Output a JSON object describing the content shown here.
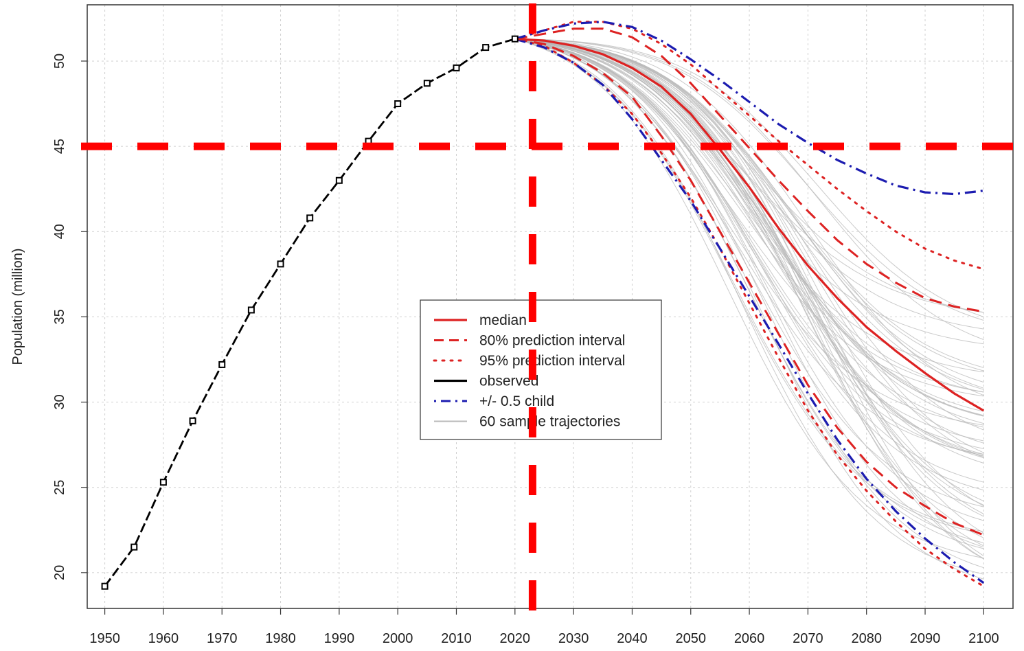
{
  "chart_data": {
    "type": "line",
    "title": "",
    "xlabel": "",
    "ylabel": "Population (million)",
    "xlim": [
      1947,
      2105
    ],
    "ylim": [
      17.9,
      53.3
    ],
    "x_ticks": [
      1950,
      1960,
      1970,
      1980,
      1990,
      2000,
      2010,
      2020,
      2030,
      2040,
      2050,
      2060,
      2070,
      2080,
      2090,
      2100
    ],
    "y_ticks": [
      20,
      25,
      30,
      35,
      40,
      45,
      50
    ],
    "grid": true,
    "legend_position": "center",
    "observed": {
      "name": "observed",
      "x": [
        1950,
        1955,
        1960,
        1965,
        1970,
        1975,
        1980,
        1985,
        1990,
        1995,
        2000,
        2005,
        2010,
        2015,
        2020
      ],
      "y": [
        19.2,
        21.5,
        25.3,
        28.9,
        32.2,
        35.4,
        38.1,
        40.8,
        43.0,
        45.3,
        47.5,
        48.7,
        49.6,
        50.8,
        51.3
      ]
    },
    "series": [
      {
        "name": "median",
        "style": "solid",
        "color": "#dd2222",
        "x": [
          2020,
          2025,
          2030,
          2035,
          2040,
          2045,
          2050,
          2055,
          2060,
          2065,
          2070,
          2075,
          2080,
          2085,
          2090,
          2095,
          2100
        ],
        "y": [
          51.3,
          51.2,
          50.9,
          50.4,
          49.6,
          48.5,
          46.9,
          44.8,
          42.6,
          40.2,
          38.0,
          36.1,
          34.4,
          33.0,
          31.7,
          30.5,
          29.5
        ]
      },
      {
        "name": "80% prediction interval",
        "style": "dashed",
        "color": "#dd2222",
        "upper": {
          "x": [
            2020,
            2025,
            2030,
            2035,
            2040,
            2045,
            2050,
            2055,
            2060,
            2065,
            2070,
            2075,
            2080,
            2085,
            2090,
            2095,
            2100
          ],
          "y": [
            51.3,
            51.6,
            51.9,
            51.9,
            51.4,
            50.3,
            48.7,
            46.8,
            44.9,
            43.0,
            41.2,
            39.5,
            38.1,
            37.0,
            36.1,
            35.6,
            35.3
          ]
        },
        "lower": {
          "x": [
            2020,
            2025,
            2030,
            2035,
            2040,
            2045,
            2050,
            2055,
            2060,
            2065,
            2070,
            2075,
            2080,
            2085,
            2090,
            2095,
            2100
          ],
          "y": [
            51.3,
            51.0,
            50.3,
            49.3,
            47.9,
            45.6,
            43.0,
            40.0,
            37.0,
            34.0,
            31.0,
            28.5,
            26.5,
            25.0,
            23.9,
            22.9,
            22.2
          ]
        }
      },
      {
        "name": "95% prediction interval",
        "style": "dotted",
        "color": "#dd2222",
        "upper": {
          "x": [
            2020,
            2025,
            2030,
            2035,
            2040,
            2045,
            2050,
            2055,
            2060,
            2065,
            2070,
            2075,
            2080,
            2085,
            2090,
            2095,
            2100
          ],
          "y": [
            51.3,
            51.8,
            52.3,
            52.3,
            51.9,
            51.0,
            49.8,
            48.3,
            46.8,
            45.3,
            43.9,
            42.5,
            41.2,
            40.0,
            39.0,
            38.3,
            37.8
          ]
        },
        "lower": {
          "x": [
            2020,
            2025,
            2030,
            2035,
            2040,
            2045,
            2050,
            2055,
            2060,
            2065,
            2070,
            2075,
            2080,
            2085,
            2090,
            2095,
            2100
          ],
          "y": [
            51.3,
            50.9,
            49.9,
            48.6,
            46.9,
            44.6,
            42.0,
            39.0,
            35.8,
            32.6,
            29.5,
            26.9,
            24.8,
            23.0,
            21.4,
            20.2,
            19.2
          ]
        }
      },
      {
        "name": "+/- 0.5 child",
        "style": "dashdot",
        "color": "#1c1cb0",
        "upper": {
          "x": [
            2020,
            2025,
            2030,
            2035,
            2040,
            2045,
            2050,
            2055,
            2060,
            2065,
            2070,
            2075,
            2080,
            2085,
            2090,
            2095,
            2100
          ],
          "y": [
            51.3,
            51.8,
            52.2,
            52.3,
            52.0,
            51.2,
            50.1,
            48.9,
            47.6,
            46.3,
            45.2,
            44.2,
            43.4,
            42.7,
            42.3,
            42.2,
            42.4
          ]
        },
        "lower": {
          "x": [
            2020,
            2025,
            2030,
            2035,
            2040,
            2045,
            2050,
            2055,
            2060,
            2065,
            2070,
            2075,
            2080,
            2085,
            2090,
            2095,
            2100
          ],
          "y": [
            51.3,
            50.8,
            49.9,
            48.6,
            46.6,
            44.2,
            41.8,
            39.0,
            36.2,
            33.4,
            30.5,
            27.8,
            25.5,
            23.6,
            22.0,
            20.6,
            19.4
          ]
        }
      }
    ],
    "sample_trajectories": {
      "name": "60 sample trajectories",
      "count": 60,
      "color": "#b8b8b8",
      "start": [
        2020,
        51.3
      ],
      "end_range_2100": [
        19.5,
        36.0
      ]
    },
    "legend": [
      {
        "label": "median",
        "style": "solid",
        "color": "#dd2222"
      },
      {
        "label": "80% prediction interval",
        "style": "dashed",
        "color": "#dd2222"
      },
      {
        "label": "95% prediction interval",
        "style": "dotted",
        "color": "#dd2222"
      },
      {
        "label": "observed",
        "style": "solid",
        "color": "#000000"
      },
      {
        "label": "+/- 0.5 child",
        "style": "dashdot",
        "color": "#1c1cb0"
      },
      {
        "label": "60 sample trajectories",
        "style": "solid",
        "color": "#b8b8b8"
      }
    ],
    "annotations": {
      "horizontal_line_y": 45,
      "vertical_line_x": 2023,
      "color": "#ff0000",
      "style": "dashed"
    }
  }
}
